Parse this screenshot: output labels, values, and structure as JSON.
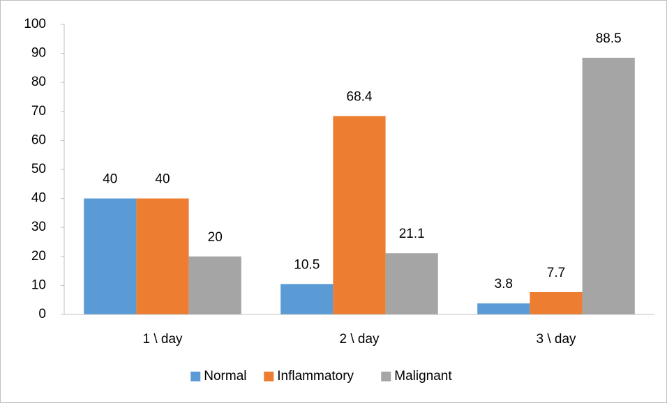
{
  "chart_data": {
    "type": "bar",
    "categories": [
      "1 \\ day",
      "2 \\ day",
      "3 \\ day"
    ],
    "series": [
      {
        "name": "Normal",
        "color": "#5b9bd5",
        "values": [
          40,
          10.5,
          3.8
        ]
      },
      {
        "name": "Inflammatory",
        "color": "#ed7d31",
        "values": [
          40,
          68.4,
          7.7
        ]
      },
      {
        "name": "Malignant",
        "color": "#a5a5a5",
        "values": [
          20,
          21.1,
          88.5
        ]
      }
    ],
    "ylim": [
      0,
      100
    ],
    "yticks": [
      0,
      10,
      20,
      30,
      40,
      50,
      60,
      70,
      80,
      90,
      100
    ],
    "grid": false,
    "legend": "bottom"
  }
}
